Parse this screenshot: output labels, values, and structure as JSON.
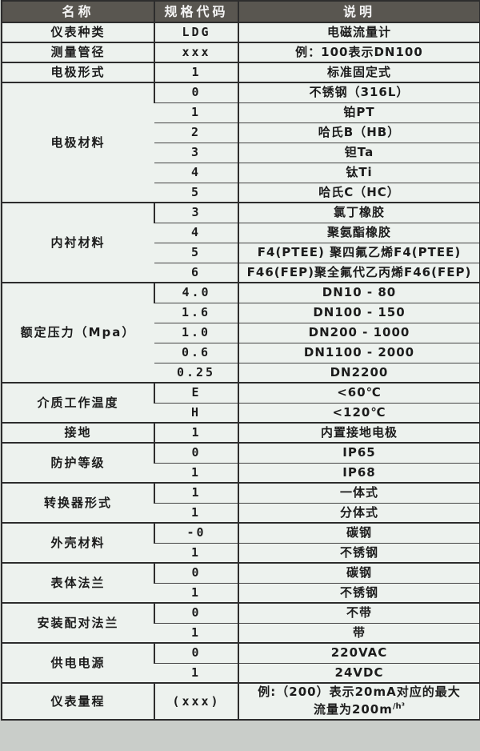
{
  "table": {
    "columns": [
      "名称",
      "规格代码",
      "说明"
    ],
    "colors": {
      "page_bg": "#c9cdc9",
      "cell_bg": "#edf2ee",
      "header_bg": "#595650",
      "header_text": "#f4f4f4",
      "border": "#2d2d2d",
      "text": "#1c1c1c"
    },
    "groups": [
      {
        "name": "仪表种类",
        "rows": [
          {
            "code": "LDG",
            "desc": "电磁流量计"
          }
        ]
      },
      {
        "name": "测量管径",
        "rows": [
          {
            "code": "xxx",
            "desc": "例：100表示DN100"
          }
        ]
      },
      {
        "name": "电极形式",
        "rows": [
          {
            "code": "1",
            "desc": "标准固定式"
          }
        ]
      },
      {
        "name": "电极材料",
        "rows": [
          {
            "code": "0",
            "desc": "不锈钢（316L）"
          },
          {
            "code": "1",
            "desc": "铂PT"
          },
          {
            "code": "2",
            "desc": "哈氏B（HB）"
          },
          {
            "code": "3",
            "desc": "钽Ta"
          },
          {
            "code": "4",
            "desc": "钛Ti"
          },
          {
            "code": "5",
            "desc": "哈氏C（HC）"
          }
        ]
      },
      {
        "name": "内衬材料",
        "rows": [
          {
            "code": "3",
            "desc": "氯丁橡胶"
          },
          {
            "code": "4",
            "desc": "聚氨酯橡胶"
          },
          {
            "code": "5",
            "desc": "F4(PTEE) 聚四氟乙烯F4(PTEE)"
          },
          {
            "code": "6",
            "desc": "F46(FEP)聚全氟代乙丙烯F46(FEP)"
          }
        ]
      },
      {
        "name": "额定压力（Mpa）",
        "rows": [
          {
            "code": "4.0",
            "desc": "DN10 - 80"
          },
          {
            "code": "1.6",
            "desc": "DN100 - 150"
          },
          {
            "code": "1.0",
            "desc": "DN200 - 1000"
          },
          {
            "code": "0.6",
            "desc": "DN1100 - 2000"
          },
          {
            "code": "0.25",
            "desc": "DN2200"
          }
        ]
      },
      {
        "name": "介质工作温度",
        "rows": [
          {
            "code": "E",
            "desc": "<60℃"
          },
          {
            "code": "H",
            "desc": "<120℃"
          }
        ]
      },
      {
        "name": "接地",
        "rows": [
          {
            "code": "1",
            "desc": "内置接地电极"
          }
        ]
      },
      {
        "name": "防护等级",
        "rows": [
          {
            "code": "0",
            "desc": "IP65"
          },
          {
            "code": "1",
            "desc": "IP68"
          }
        ]
      },
      {
        "name": "转换器形式",
        "rows": [
          {
            "code": "1",
            "desc": "一体式"
          },
          {
            "code": "1",
            "desc": "分体式"
          }
        ]
      },
      {
        "name": "外壳材料",
        "rows": [
          {
            "code": "-0",
            "desc": "碳钢"
          },
          {
            "code": "1",
            "desc": "不锈钢"
          }
        ]
      },
      {
        "name": "表体法兰",
        "rows": [
          {
            "code": "0",
            "desc": "碳钢"
          },
          {
            "code": "1",
            "desc": "不锈钢"
          }
        ]
      },
      {
        "name": "安装配对法兰",
        "rows": [
          {
            "code": "0",
            "desc": "不带"
          },
          {
            "code": "1",
            "desc": "带"
          }
        ]
      },
      {
        "name": "供电电源",
        "rows": [
          {
            "code": "0",
            "desc": "220VAC"
          },
          {
            "code": "1",
            "desc": "24VDC"
          }
        ]
      },
      {
        "name": "仪表量程",
        "rows": [
          {
            "code": "(xxx)",
            "tall": true,
            "desc_lines": [
              "例:（200）表示20mA对应的最大",
              "流量为200m"
            ],
            "desc_sup": "/h³"
          }
        ]
      }
    ]
  }
}
